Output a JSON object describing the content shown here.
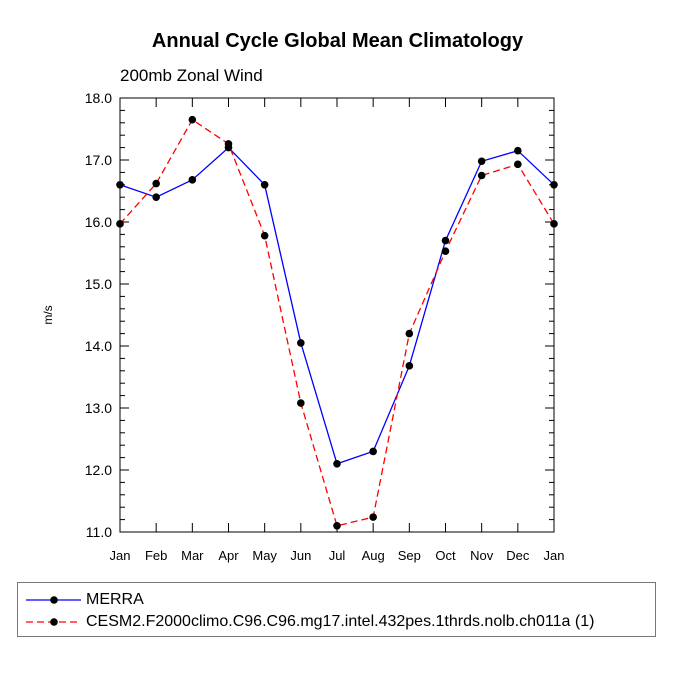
{
  "title": "Annual Cycle Global Mean Climatology",
  "subtitle": "200mb Zonal Wind",
  "chart_data": {
    "type": "line",
    "title": "Annual Cycle Global Mean Climatology",
    "subtitle": "200mb Zonal Wind",
    "xlabel": "",
    "ylabel": "m/s",
    "categories": [
      "Jan",
      "Feb",
      "Mar",
      "Apr",
      "May",
      "Jun",
      "Jul",
      "Aug",
      "Sep",
      "Oct",
      "Nov",
      "Dec",
      "Jan"
    ],
    "ylim": [
      11.0,
      18.0
    ],
    "yticks": [
      "11.0",
      "12.0",
      "13.0",
      "14.0",
      "15.0",
      "16.0",
      "17.0",
      "18.0"
    ],
    "grid": false,
    "legend_position": "bottom",
    "series": [
      {
        "name": "MERRA",
        "color": "#0000ff",
        "line_style": "solid",
        "marker": "filled-circle",
        "values": [
          16.6,
          16.4,
          16.68,
          17.2,
          16.6,
          14.05,
          12.1,
          12.3,
          13.68,
          15.7,
          16.98,
          17.15,
          16.6
        ]
      },
      {
        "name": "CESM2.F2000climo.C96.C96.mg17.intel.432pes.1thrds.nolb.ch011a (1)",
        "color": "#ff0000",
        "line_style": "dashed",
        "marker": "filled-circle",
        "values": [
          15.97,
          16.62,
          17.65,
          17.26,
          15.78,
          13.08,
          11.1,
          11.24,
          14.2,
          15.53,
          16.75,
          16.93,
          15.97
        ]
      }
    ]
  }
}
